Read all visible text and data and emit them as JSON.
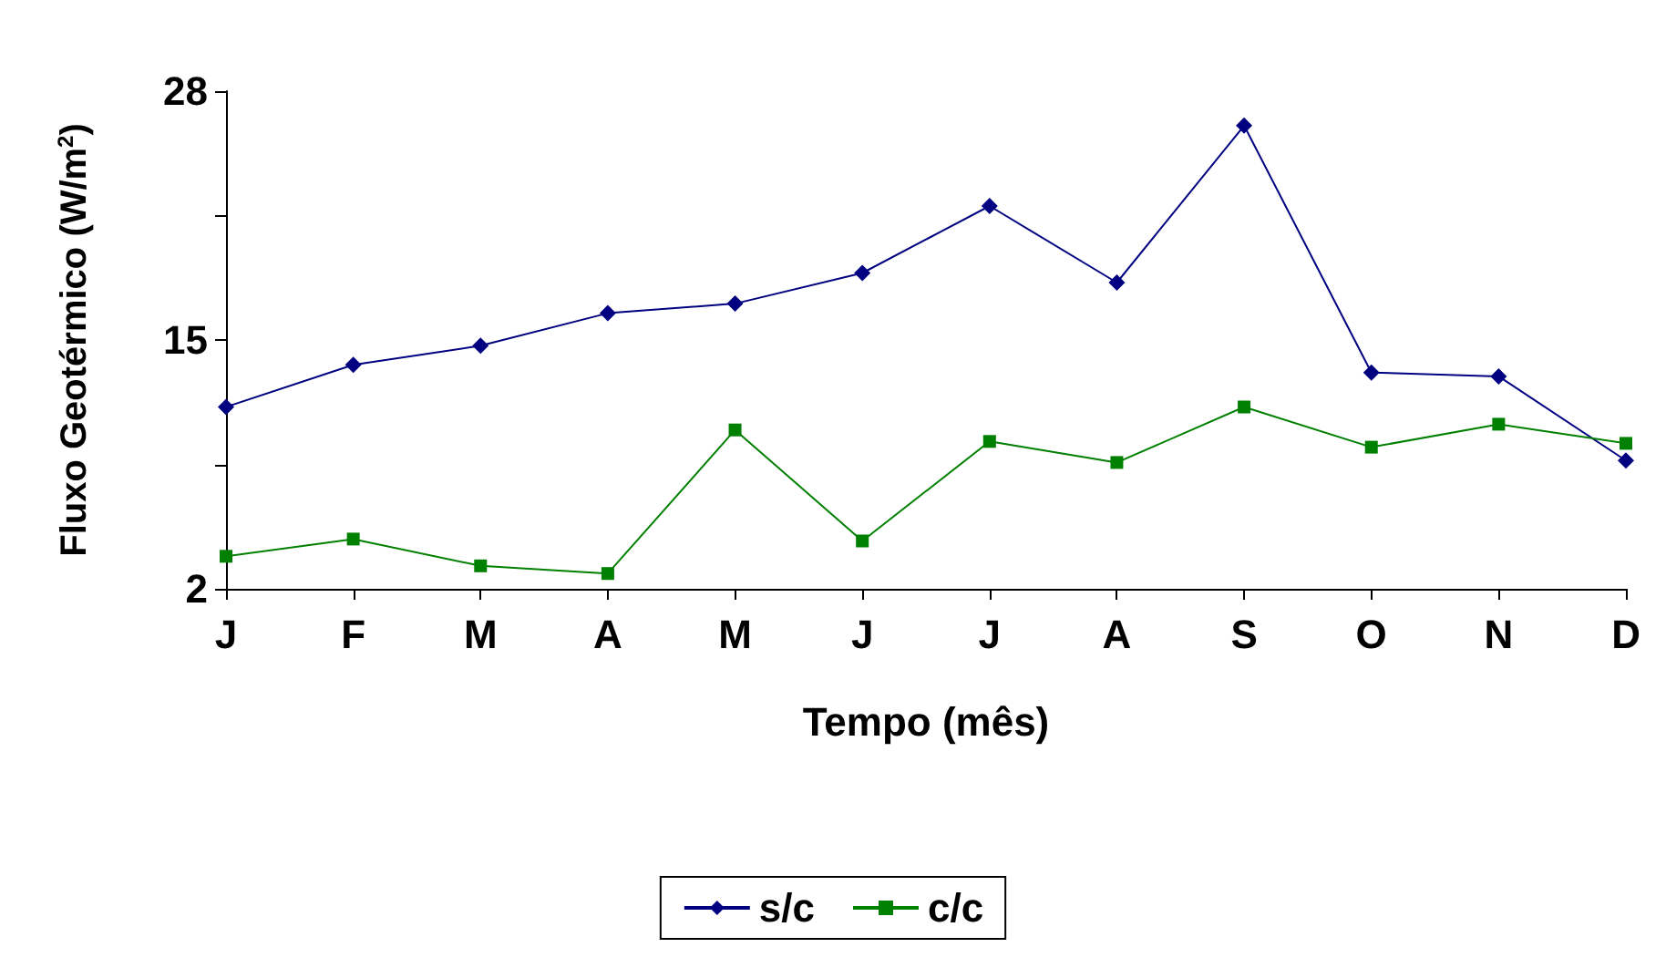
{
  "chart_data": {
    "type": "line",
    "xlabel": "Tempo (mês)",
    "ylabel": "Fluxo Geotérmico (W/m$^{2}$)",
    "categories": [
      "J",
      "F",
      "M",
      "A",
      "M",
      "J",
      "J",
      "A",
      "S",
      "O",
      "N",
      "D"
    ],
    "series": [
      {
        "name": "s/c",
        "color": "#000080",
        "marker": "diamond",
        "values": [
          11.5,
          13.7,
          14.7,
          16.4,
          16.9,
          18.5,
          22.0,
          18.0,
          26.2,
          13.3,
          13.1,
          8.7
        ]
      },
      {
        "name": "c/c",
        "color": "#008000",
        "marker": "square",
        "values": [
          3.7,
          4.6,
          3.2,
          2.8,
          10.3,
          4.5,
          9.7,
          8.6,
          11.5,
          9.4,
          10.6,
          9.6
        ]
      }
    ],
    "ylim": [
      2,
      28
    ],
    "yticks": [
      2,
      {
        "value": 8.5,
        "label": null
      },
      15,
      {
        "value": 21.5,
        "label": null
      },
      28
    ],
    "grid": false,
    "legend": "bottom",
    "line_style": "solid"
  }
}
